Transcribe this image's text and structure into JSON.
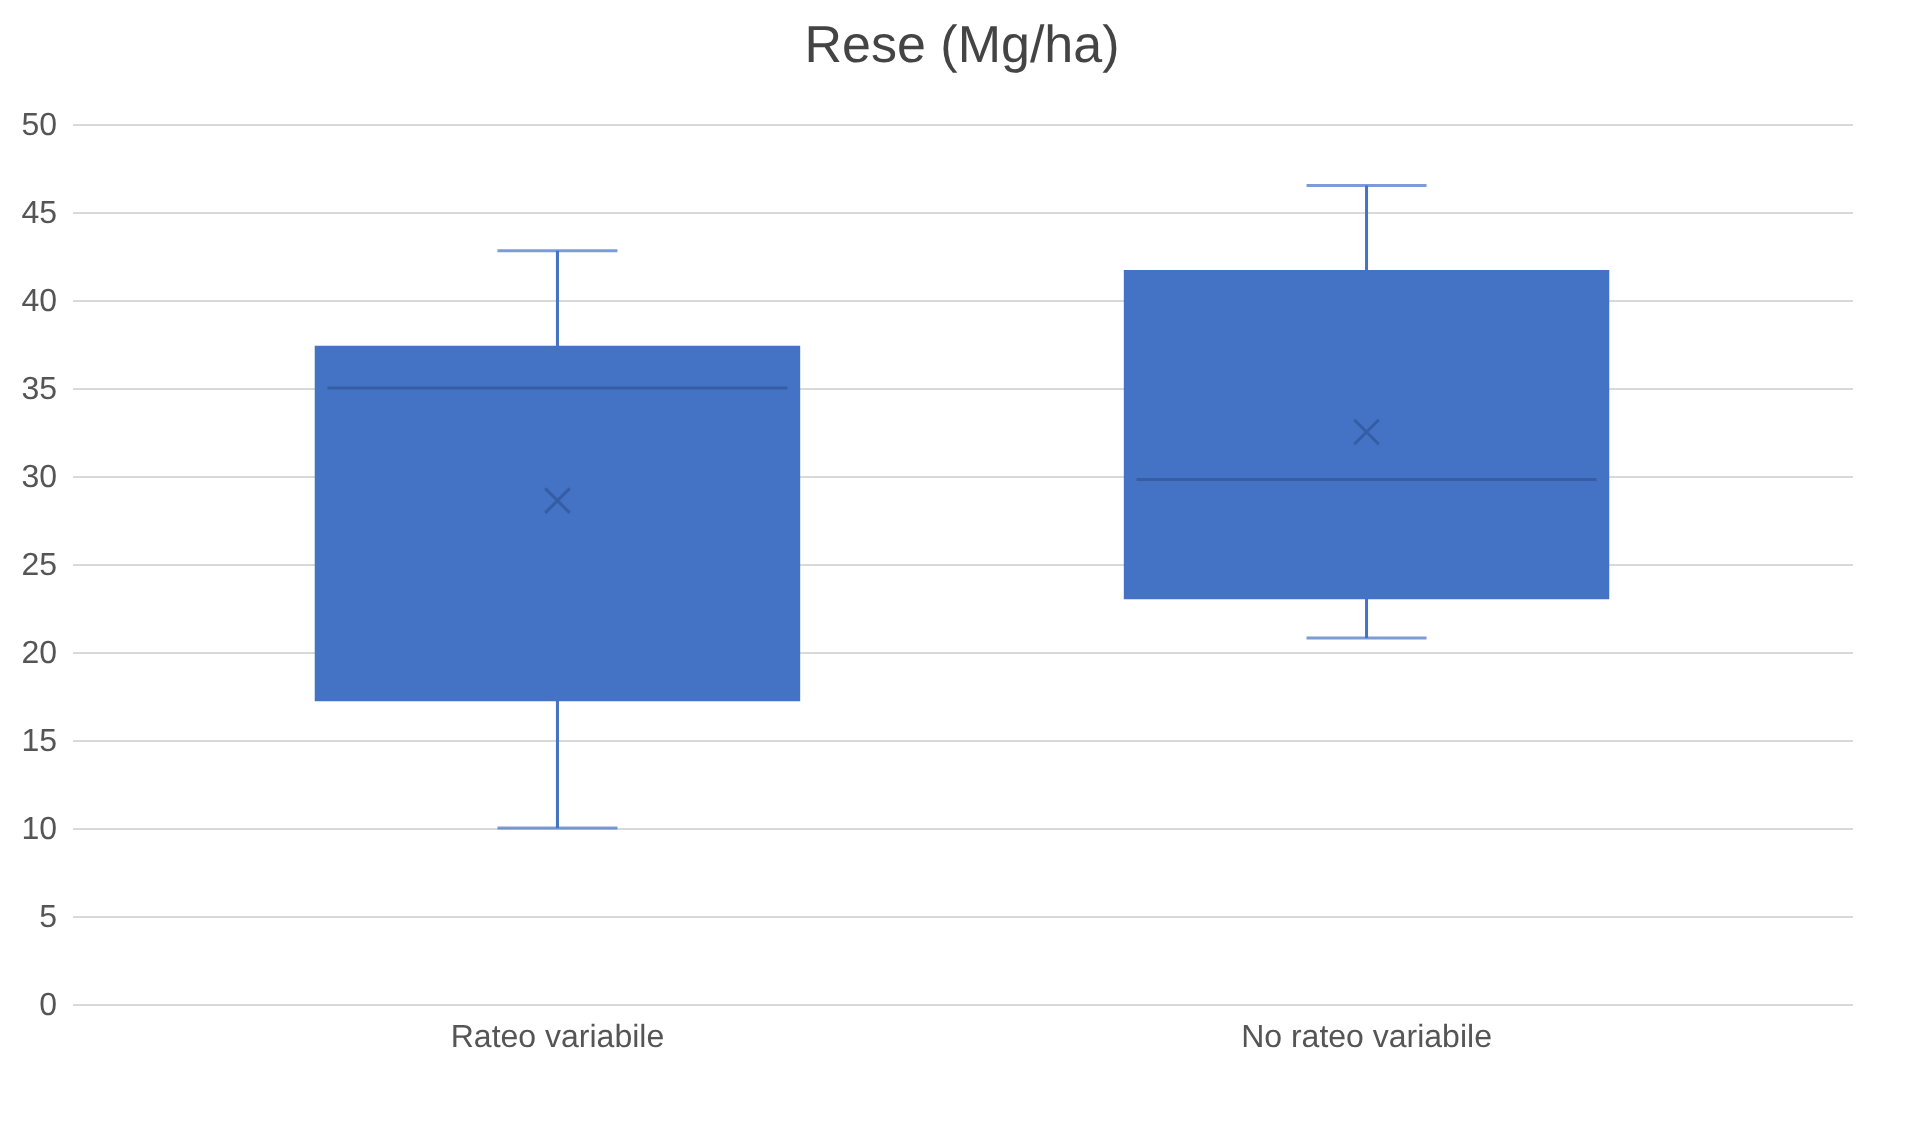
{
  "chart_data": {
    "type": "box",
    "title": "Rese (Mg/ha)",
    "categories": [
      "Rateo variabile",
      "No rateo variabile"
    ],
    "boxes": [
      {
        "low": 10,
        "q1": 17.2,
        "median": 35,
        "q3": 37.4,
        "high": 42.8,
        "mean": 28.6
      },
      {
        "low": 20.8,
        "q1": 23,
        "median": 29.8,
        "q3": 41.7,
        "high": 46.5,
        "mean": 32.5
      }
    ],
    "color": "#4472c4",
    "ylim": [
      0,
      50
    ],
    "yticks": [
      0,
      5,
      10,
      15,
      20,
      25,
      30,
      35,
      40,
      45,
      50
    ],
    "grid": "y"
  }
}
